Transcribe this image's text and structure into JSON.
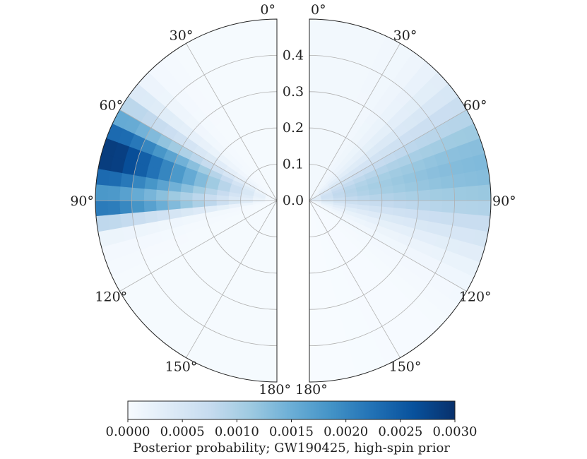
{
  "chart_data": {
    "type": "heatmap",
    "subtype": "polar-half-disk-pair",
    "colormap": "Blues",
    "angular_ticks_left": [
      "0°",
      "30°",
      "60°",
      "90°",
      "120°",
      "150°",
      "180°"
    ],
    "angular_ticks_right": [
      "0°",
      "30°",
      "60°",
      "90°",
      "120°",
      "150°",
      "180°"
    ],
    "radial_ticks": [
      "0.0",
      "0.1",
      "0.2",
      "0.3",
      "0.4"
    ],
    "radial_range": [
      0,
      0.5
    ],
    "angle_range_deg": [
      0,
      180
    ],
    "grid": true,
    "colorbar": {
      "ticks": [
        "0.0000",
        "0.0005",
        "0.0010",
        "0.0015",
        "0.0020",
        "0.0025",
        "0.0030"
      ],
      "range": [
        0,
        0.003
      ],
      "label": "Posterior probability; GW190425, high-spin prior",
      "colors": [
        "#f7fbff",
        "#deebf7",
        "#c6dbef",
        "#9ecae1",
        "#6baed6",
        "#4292c6",
        "#2171b5",
        "#08519c",
        "#08306b"
      ]
    },
    "left_density": {
      "peak_angle_deg": 75,
      "angle_sigma_deg": 11,
      "peak_max": 0.0029,
      "radial_profile": [
        0.02,
        0.08,
        0.15,
        0.22,
        0.3,
        0.38,
        0.46,
        0.54,
        0.62,
        0.7,
        0.78,
        0.86,
        0.93,
        0.99,
        1.0
      ],
      "secondary_peak_angle_deg": 93,
      "secondary_sigma_deg": 3,
      "secondary_scale": 0.45
    },
    "right_density": {
      "peak_angle_deg": 78,
      "angle_sigma_deg": 17,
      "peak_max": 0.0013,
      "radial_profile": [
        0.25,
        0.45,
        0.58,
        0.66,
        0.72,
        0.77,
        0.81,
        0.85,
        0.88,
        0.91,
        0.94,
        0.96,
        0.98,
        0.99,
        1.0
      ],
      "floor": 8e-05
    }
  }
}
